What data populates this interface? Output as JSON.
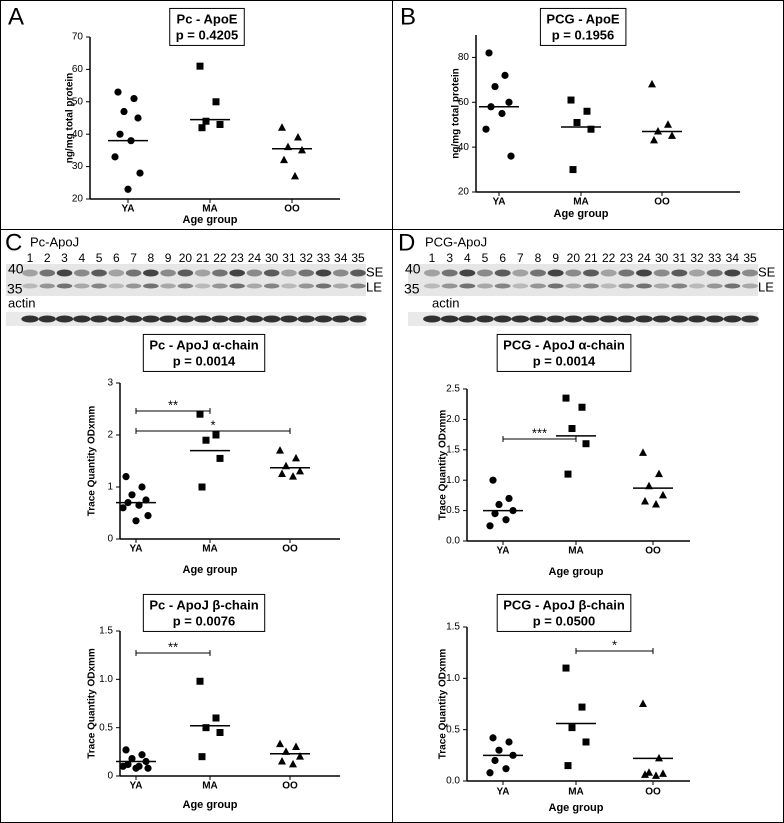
{
  "panels": [
    {
      "letter": "A"
    },
    {
      "letter": "B"
    },
    {
      "letter": "C"
    },
    {
      "letter": "D"
    }
  ],
  "blots": [
    {
      "title": "Pc-ApoJ",
      "lanes": [
        "1",
        "2",
        "3",
        "4",
        "5",
        "6",
        "7",
        "8",
        "9",
        "20",
        "21",
        "22",
        "23",
        "24",
        "30",
        "31",
        "32",
        "33",
        "34",
        "35"
      ],
      "size_markers": [
        "40",
        "35"
      ],
      "bands": [
        "SE",
        "LE"
      ],
      "loading": "actin"
    },
    {
      "title": "PCG-ApoJ",
      "lanes": [
        "1",
        "3",
        "4",
        "5",
        "6",
        "7",
        "8",
        "9",
        "20",
        "21",
        "22",
        "23",
        "24",
        "30",
        "31",
        "32",
        "33",
        "34",
        "35"
      ],
      "size_markers": [
        "40",
        "35"
      ],
      "bands": [
        "SE",
        "LE"
      ],
      "loading": "actin"
    }
  ],
  "chart_data": [
    {
      "type": "dotplot",
      "title": "Pc - ApoE",
      "subtitle": "p = 0.4205",
      "ylabel": "ng/mg total protein",
      "xlabel": "Age group",
      "categories": [
        "YA",
        "MA",
        "OO"
      ],
      "markers": [
        "circle",
        "square",
        "triangle"
      ],
      "color": "#000000",
      "values": [
        [
          53,
          51,
          47,
          45,
          40,
          38,
          33,
          28,
          23
        ],
        [
          61,
          50,
          44,
          43,
          42
        ],
        [
          42,
          39,
          36,
          35,
          32,
          27
        ]
      ],
      "means": [
        38,
        44.5,
        35.5
      ],
      "ylim": [
        20,
        70
      ],
      "yticks": [
        20,
        30,
        40,
        50,
        60,
        70
      ],
      "brackets": []
    },
    {
      "type": "dotplot",
      "title": "PCG - ApoE",
      "subtitle": "p = 0.1956",
      "ylabel": "ng/mg total protein",
      "xlabel": "Age group",
      "categories": [
        "YA",
        "MA",
        "OO"
      ],
      "markers": [
        "circle",
        "square",
        "triangle"
      ],
      "color": "#000000",
      "values": [
        [
          82,
          72,
          67,
          60,
          58,
          55,
          48,
          36
        ],
        [
          61,
          56,
          51,
          48,
          30
        ],
        [
          68,
          50,
          47,
          45,
          43
        ]
      ],
      "means": [
        58,
        49,
        47
      ],
      "ylim": [
        20,
        90
      ],
      "yticks": [
        20,
        40,
        60,
        80
      ],
      "brackets": []
    },
    {
      "type": "dotplot",
      "title": "Pc - ApoJ α-chain",
      "subtitle": "p = 0.0014",
      "ylabel": "Trace  Quantity ODxmm",
      "xlabel": "Age group",
      "categories": [
        "YA",
        "MA",
        "OO"
      ],
      "markers": [
        "circle",
        "square",
        "triangle"
      ],
      "color": "#000000",
      "values": [
        [
          1.2,
          1.0,
          0.85,
          0.75,
          0.7,
          0.65,
          0.6,
          0.45,
          0.35
        ],
        [
          2.4,
          2.0,
          1.9,
          1.55,
          1.0
        ],
        [
          1.7,
          1.55,
          1.4,
          1.3,
          1.25,
          1.2
        ]
      ],
      "means": [
        0.7,
        1.7,
        1.37
      ],
      "ylim": [
        0,
        3
      ],
      "yticks": [
        0,
        1,
        2,
        3
      ],
      "brackets": [
        {
          "from": "YA",
          "to": "MA",
          "label": "**"
        },
        {
          "from": "YA",
          "to": "OO",
          "label": "*"
        }
      ]
    },
    {
      "type": "dotplot",
      "title": "Pc - ApoJ β-chain",
      "subtitle": "p = 0.0076",
      "ylabel": "Trace  Quantity ODxmm",
      "xlabel": "Age group",
      "categories": [
        "YA",
        "MA",
        "OO"
      ],
      "markers": [
        "circle",
        "square",
        "triangle"
      ],
      "color": "#000000",
      "values": [
        [
          0.27,
          0.22,
          0.18,
          0.15,
          0.12,
          0.1,
          0.1,
          0.08,
          0.08
        ],
        [
          0.98,
          0.6,
          0.5,
          0.45,
          0.2
        ],
        [
          0.33,
          0.3,
          0.25,
          0.2,
          0.15,
          0.12
        ]
      ],
      "means": [
        0.15,
        0.52,
        0.23
      ],
      "ylim": [
        0,
        1.5
      ],
      "yticks": [
        0,
        0.5,
        {
          "value": 1,
          "label": "1.0"
        },
        1.5
      ],
      "brackets": [
        {
          "from": "YA",
          "to": "MA",
          "label": "**"
        }
      ]
    },
    {
      "type": "dotplot",
      "title": "PCG - ApoJ α-chain",
      "subtitle": "p = 0.0014",
      "ylabel": "Trace  Quantity ODxmm",
      "xlabel": "Age group",
      "categories": [
        "YA",
        "MA",
        "OO"
      ],
      "markers": [
        "circle",
        "square",
        "triangle"
      ],
      "color": "#000000",
      "values": [
        [
          1.0,
          0.7,
          0.6,
          0.5,
          0.45,
          0.35,
          0.25
        ],
        [
          2.35,
          2.2,
          1.85,
          1.6,
          1.1
        ],
        [
          1.45,
          1.1,
          0.9,
          0.75,
          0.65,
          0.6
        ]
      ],
      "means": [
        0.5,
        1.73,
        0.87
      ],
      "ylim": [
        0,
        2.5
      ],
      "yticks": [
        {
          "value": 0,
          "label": "0.0"
        },
        0.5,
        {
          "value": 1,
          "label": "1.0"
        },
        1.5,
        {
          "value": 2,
          "label": "2.0"
        },
        2.5
      ],
      "brackets": [
        {
          "from": "YA",
          "to": "MA",
          "label": "***"
        }
      ]
    },
    {
      "type": "dotplot",
      "title": "PCG - ApoJ β-chain",
      "subtitle": "p = 0.0500",
      "ylabel": "Trace  Quantity ODxmm",
      "xlabel": "Age group",
      "categories": [
        "YA",
        "MA",
        "OO"
      ],
      "markers": [
        "circle",
        "square",
        "triangle"
      ],
      "color": "#000000",
      "values": [
        [
          0.42,
          0.38,
          0.3,
          0.25,
          0.2,
          0.12,
          0.08
        ],
        [
          1.1,
          0.72,
          0.52,
          0.38,
          0.15
        ],
        [
          0.75,
          0.22,
          0.08,
          0.07,
          0.06,
          0.05
        ]
      ],
      "means": [
        0.25,
        0.56,
        0.22
      ],
      "ylim": [
        0,
        1.5
      ],
      "yticks": [
        {
          "value": 0,
          "label": "0.0"
        },
        0.5,
        {
          "value": 1,
          "label": "1.0"
        },
        1.5
      ],
      "brackets": [
        {
          "from": "MA",
          "to": "OO",
          "label": "*"
        }
      ]
    }
  ]
}
